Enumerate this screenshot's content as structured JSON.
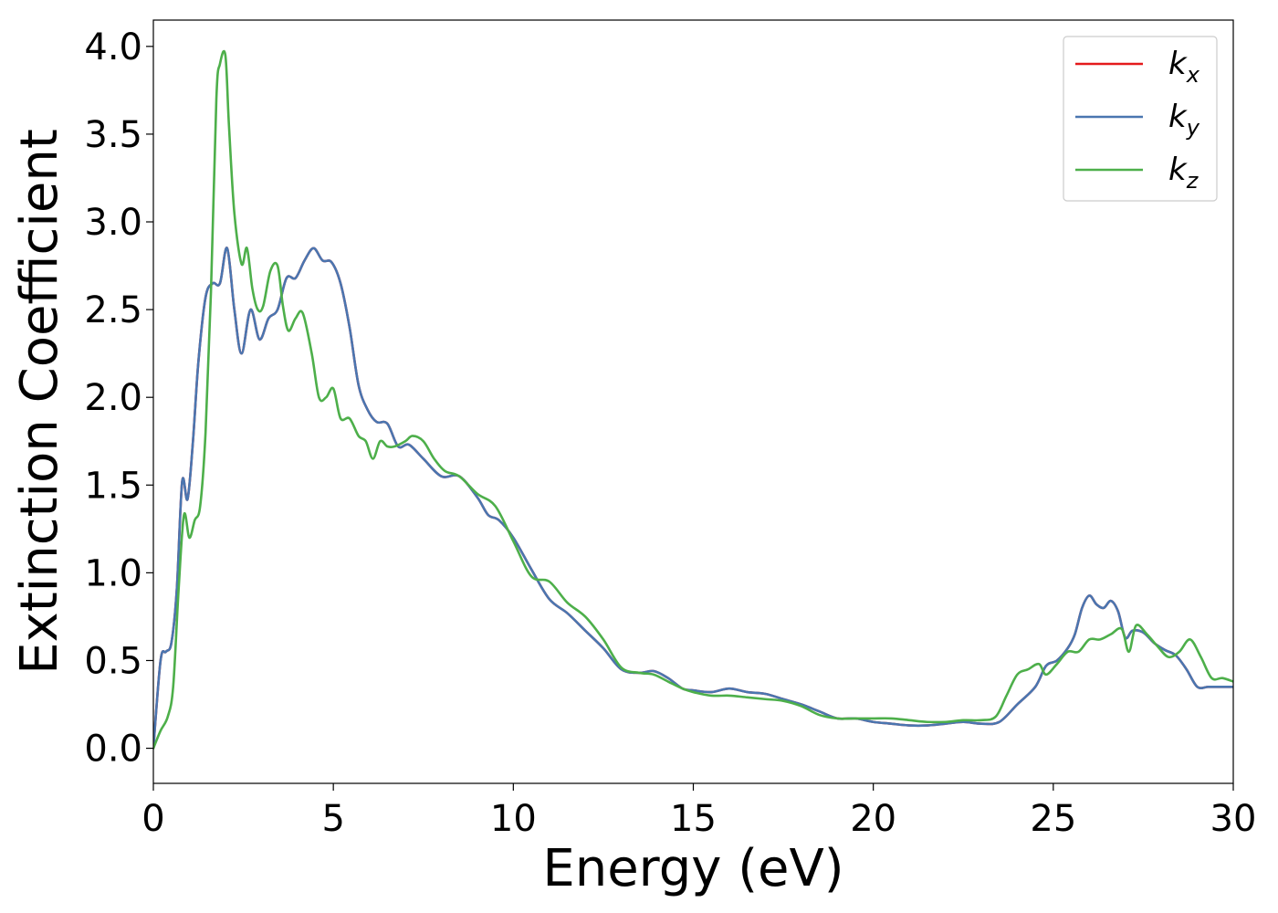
{
  "chart_data": {
    "type": "line",
    "xlabel": "Energy (eV)",
    "ylabel": "Extinction Coefficient",
    "xlim": [
      0,
      30
    ],
    "ylim": [
      -0.2,
      4.15
    ],
    "xticks": [
      0,
      5,
      10,
      15,
      20,
      25,
      30
    ],
    "xtick_labels": [
      "0",
      "5",
      "10",
      "15",
      "20",
      "25",
      "30"
    ],
    "yticks": [
      0.0,
      0.5,
      1.0,
      1.5,
      2.0,
      2.5,
      3.0,
      3.5,
      4.0
    ],
    "ytick_labels": [
      "0.0",
      "0.5",
      "1.0",
      "1.5",
      "2.0",
      "2.5",
      "3.0",
      "3.5",
      "4.0"
    ],
    "grid": false,
    "legend_position": "top-right",
    "series": [
      {
        "name": "k",
        "subscript": "x",
        "color": "#e41a1c",
        "x": [
          0,
          0.2,
          0.35,
          0.5,
          0.65,
          0.8,
          0.95,
          1.1,
          1.25,
          1.45,
          1.65,
          1.85,
          2.05,
          2.25,
          2.45,
          2.7,
          2.95,
          3.2,
          3.45,
          3.7,
          3.95,
          4.2,
          4.45,
          4.7,
          4.95,
          5.2,
          5.45,
          5.7,
          5.95,
          6.2,
          6.5,
          6.8,
          7.1,
          7.5,
          8.0,
          8.5,
          9.0,
          9.3,
          9.6,
          10.0,
          10.5,
          11.0,
          11.5,
          12.0,
          12.5,
          13.0,
          13.5,
          13.9,
          14.3,
          14.7,
          15.0,
          15.5,
          16.0,
          16.5,
          17.0,
          17.5,
          18.0,
          18.5,
          19.0,
          19.5,
          20.0,
          20.5,
          21.0,
          21.5,
          22.0,
          22.5,
          23.0,
          23.5,
          24.0,
          24.5,
          24.8,
          25.1,
          25.4,
          25.6,
          25.8,
          26.0,
          26.2,
          26.4,
          26.6,
          26.8,
          27.0,
          27.2,
          27.5,
          27.8,
          28.1,
          28.4,
          28.7,
          29.0,
          29.3,
          29.6,
          30.0
        ],
        "y": [
          0.0,
          0.5,
          0.55,
          0.6,
          0.9,
          1.52,
          1.42,
          1.75,
          2.2,
          2.57,
          2.65,
          2.65,
          2.85,
          2.5,
          2.25,
          2.5,
          2.33,
          2.45,
          2.5,
          2.68,
          2.68,
          2.78,
          2.85,
          2.78,
          2.77,
          2.65,
          2.4,
          2.07,
          1.93,
          1.86,
          1.85,
          1.72,
          1.73,
          1.65,
          1.55,
          1.55,
          1.43,
          1.33,
          1.3,
          1.2,
          1.02,
          0.85,
          0.77,
          0.67,
          0.57,
          0.45,
          0.43,
          0.44,
          0.4,
          0.34,
          0.33,
          0.32,
          0.34,
          0.32,
          0.31,
          0.28,
          0.25,
          0.21,
          0.17,
          0.17,
          0.15,
          0.14,
          0.13,
          0.13,
          0.14,
          0.15,
          0.14,
          0.15,
          0.25,
          0.35,
          0.47,
          0.5,
          0.57,
          0.65,
          0.8,
          0.87,
          0.82,
          0.8,
          0.84,
          0.78,
          0.63,
          0.67,
          0.66,
          0.6,
          0.56,
          0.53,
          0.45,
          0.35,
          0.35,
          0.35,
          0.35
        ]
      },
      {
        "name": "k",
        "subscript": "y",
        "color": "#4a76b0",
        "x": [
          0,
          0.2,
          0.35,
          0.5,
          0.65,
          0.8,
          0.95,
          1.1,
          1.25,
          1.45,
          1.65,
          1.85,
          2.05,
          2.25,
          2.45,
          2.7,
          2.95,
          3.2,
          3.45,
          3.7,
          3.95,
          4.2,
          4.45,
          4.7,
          4.95,
          5.2,
          5.45,
          5.7,
          5.95,
          6.2,
          6.5,
          6.8,
          7.1,
          7.5,
          8.0,
          8.5,
          9.0,
          9.3,
          9.6,
          10.0,
          10.5,
          11.0,
          11.5,
          12.0,
          12.5,
          13.0,
          13.5,
          13.9,
          14.3,
          14.7,
          15.0,
          15.5,
          16.0,
          16.5,
          17.0,
          17.5,
          18.0,
          18.5,
          19.0,
          19.5,
          20.0,
          20.5,
          21.0,
          21.5,
          22.0,
          22.5,
          23.0,
          23.5,
          24.0,
          24.5,
          24.8,
          25.1,
          25.4,
          25.6,
          25.8,
          26.0,
          26.2,
          26.4,
          26.6,
          26.8,
          27.0,
          27.2,
          27.5,
          27.8,
          28.1,
          28.4,
          28.7,
          29.0,
          29.3,
          29.6,
          30.0
        ],
        "y": [
          0.0,
          0.5,
          0.55,
          0.6,
          0.9,
          1.52,
          1.42,
          1.75,
          2.2,
          2.57,
          2.65,
          2.65,
          2.85,
          2.5,
          2.25,
          2.5,
          2.33,
          2.45,
          2.5,
          2.68,
          2.68,
          2.78,
          2.85,
          2.78,
          2.77,
          2.65,
          2.4,
          2.07,
          1.93,
          1.86,
          1.85,
          1.72,
          1.73,
          1.65,
          1.55,
          1.55,
          1.43,
          1.33,
          1.3,
          1.2,
          1.02,
          0.85,
          0.77,
          0.67,
          0.57,
          0.45,
          0.43,
          0.44,
          0.4,
          0.34,
          0.33,
          0.32,
          0.34,
          0.32,
          0.31,
          0.28,
          0.25,
          0.21,
          0.17,
          0.17,
          0.15,
          0.14,
          0.13,
          0.13,
          0.14,
          0.15,
          0.14,
          0.15,
          0.25,
          0.35,
          0.47,
          0.5,
          0.57,
          0.65,
          0.8,
          0.87,
          0.82,
          0.8,
          0.84,
          0.78,
          0.63,
          0.67,
          0.66,
          0.6,
          0.56,
          0.53,
          0.45,
          0.35,
          0.35,
          0.35,
          0.35
        ]
      },
      {
        "name": "k",
        "subscript": "z",
        "color": "#4daf4a",
        "x": [
          0,
          0.2,
          0.4,
          0.55,
          0.7,
          0.85,
          1.0,
          1.15,
          1.3,
          1.45,
          1.6,
          1.75,
          1.85,
          2.0,
          2.1,
          2.25,
          2.45,
          2.6,
          2.75,
          2.9,
          3.05,
          3.25,
          3.45,
          3.6,
          3.75,
          3.95,
          4.15,
          4.4,
          4.6,
          4.8,
          5.0,
          5.2,
          5.45,
          5.7,
          5.9,
          6.1,
          6.3,
          6.5,
          6.7,
          7.0,
          7.2,
          7.5,
          7.8,
          8.1,
          8.5,
          9.0,
          9.5,
          10.0,
          10.5,
          11.0,
          11.5,
          12.0,
          12.5,
          13.0,
          13.5,
          13.9,
          14.3,
          14.7,
          15.0,
          15.5,
          16.0,
          16.5,
          17.0,
          17.5,
          18.0,
          18.5,
          19.0,
          19.5,
          20.0,
          20.5,
          21.0,
          21.5,
          22.0,
          22.5,
          23.0,
          23.4,
          23.7,
          24.0,
          24.3,
          24.6,
          24.8,
          25.1,
          25.4,
          25.7,
          26.0,
          26.3,
          26.6,
          26.9,
          27.1,
          27.3,
          27.6,
          27.9,
          28.2,
          28.5,
          28.8,
          29.1,
          29.4,
          29.7,
          30.0
        ],
        "y": [
          0.0,
          0.1,
          0.18,
          0.35,
          0.9,
          1.33,
          1.2,
          1.3,
          1.38,
          1.8,
          2.6,
          3.7,
          3.9,
          3.95,
          3.55,
          3.05,
          2.76,
          2.85,
          2.62,
          2.5,
          2.52,
          2.72,
          2.75,
          2.52,
          2.38,
          2.45,
          2.48,
          2.25,
          2.0,
          2.0,
          2.05,
          1.88,
          1.88,
          1.78,
          1.75,
          1.65,
          1.75,
          1.72,
          1.72,
          1.75,
          1.78,
          1.75,
          1.65,
          1.58,
          1.55,
          1.45,
          1.38,
          1.18,
          0.98,
          0.95,
          0.83,
          0.75,
          0.62,
          0.46,
          0.43,
          0.42,
          0.38,
          0.34,
          0.32,
          0.3,
          0.3,
          0.29,
          0.28,
          0.27,
          0.24,
          0.19,
          0.17,
          0.17,
          0.17,
          0.17,
          0.16,
          0.15,
          0.15,
          0.16,
          0.16,
          0.18,
          0.3,
          0.42,
          0.45,
          0.48,
          0.42,
          0.48,
          0.55,
          0.55,
          0.62,
          0.62,
          0.65,
          0.68,
          0.55,
          0.7,
          0.65,
          0.58,
          0.52,
          0.55,
          0.62,
          0.52,
          0.4,
          0.4,
          0.38
        ]
      }
    ]
  }
}
